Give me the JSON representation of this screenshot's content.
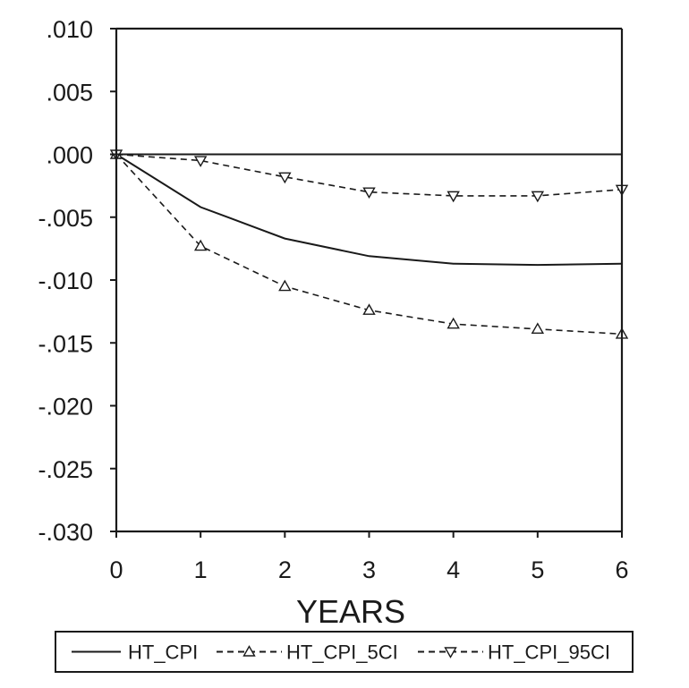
{
  "chart_data": {
    "type": "line",
    "title": "",
    "xlabel": "YEARS",
    "ylabel": "",
    "x": [
      0,
      1,
      2,
      3,
      4,
      5,
      6
    ],
    "xlim": [
      0,
      6
    ],
    "ylim": [
      -0.03,
      0.01
    ],
    "x_ticks": [
      0,
      1,
      2,
      3,
      4,
      5,
      6
    ],
    "x_tick_labels": [
      "0",
      "1",
      "2",
      "3",
      "4",
      "5",
      "6"
    ],
    "y_ticks": [
      0.01,
      0.005,
      0.0,
      -0.005,
      -0.01,
      -0.015,
      -0.02,
      -0.025,
      -0.03
    ],
    "y_tick_labels": [
      ".010",
      ".005",
      ".000",
      "-.005",
      "-.010",
      "-.015",
      "-.020",
      "-.025",
      "-.030"
    ],
    "zero_line": true,
    "grid": false,
    "legend_position": "bottom",
    "series": [
      {
        "name": "HT_CPI",
        "style": "solid",
        "marker": "none",
        "color": "#1a1a1a",
        "values": [
          0.0,
          -0.0042,
          -0.0067,
          -0.0081,
          -0.0087,
          -0.0088,
          -0.0087
        ]
      },
      {
        "name": "HT_CPI_5CI",
        "style": "dashed",
        "marker": "triangle-up",
        "color": "#1a1a1a",
        "values": [
          0.0,
          -0.0073,
          -0.0105,
          -0.0124,
          -0.0135,
          -0.0139,
          -0.0143
        ]
      },
      {
        "name": "HT_CPI_95CI",
        "style": "dashed",
        "marker": "triangle-down",
        "color": "#1a1a1a",
        "values": [
          0.0,
          -0.0005,
          -0.0018,
          -0.003,
          -0.0033,
          -0.0033,
          -0.0028
        ]
      }
    ]
  }
}
